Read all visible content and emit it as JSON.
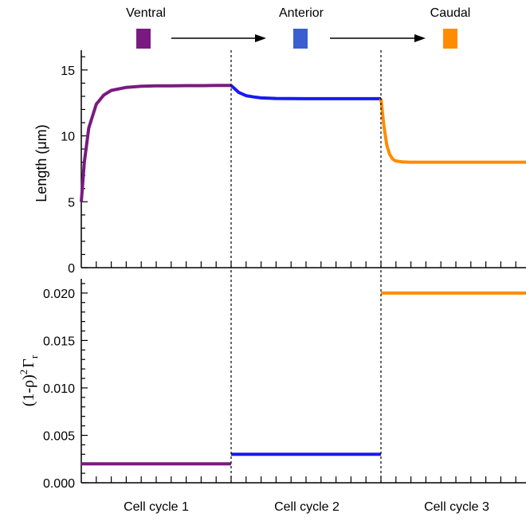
{
  "chart_data": [
    {
      "type": "line",
      "title": "",
      "xlabel": "",
      "ylabel": "Length (μm)",
      "ylim": [
        0,
        16.5
      ],
      "yticks": [
        0,
        5,
        10,
        15
      ],
      "ytick_labels": [
        "0",
        "5",
        "10",
        "15"
      ],
      "grid": false,
      "legend": "top",
      "stages": [
        {
          "name": "Ventral",
          "color": "#7a1a80"
        },
        {
          "name": "Anterior",
          "color": "#3a5fd0"
        },
        {
          "name": "Caudal",
          "color": "#ff8c00"
        }
      ],
      "series": [
        {
          "stage": "Ventral",
          "color": "#7a1a80",
          "x": [
            0.0,
            0.02,
            0.05,
            0.1,
            0.15,
            0.2,
            0.3,
            0.4,
            0.5,
            0.6,
            0.7,
            0.8,
            0.9,
            1.0
          ],
          "y": [
            5.0,
            8.0,
            10.6,
            12.4,
            13.1,
            13.45,
            13.68,
            13.76,
            13.79,
            13.8,
            13.81,
            13.81,
            13.82,
            13.82
          ]
        },
        {
          "stage": "Anterior",
          "color": "#1a1aee",
          "x": [
            1.0,
            1.05,
            1.1,
            1.15,
            1.2,
            1.3,
            1.4,
            1.5,
            1.6,
            1.7,
            1.8,
            1.9,
            2.0
          ],
          "y": [
            13.82,
            13.3,
            13.05,
            12.95,
            12.88,
            12.84,
            12.83,
            12.82,
            12.82,
            12.82,
            12.82,
            12.82,
            12.82
          ]
        },
        {
          "stage": "Caudal",
          "color": "#ff8c00",
          "x": [
            2.0,
            2.02,
            2.04,
            2.06,
            2.08,
            2.1,
            2.15,
            2.2,
            2.3,
            2.5,
            2.7,
            2.9,
            3.0
          ],
          "y": [
            12.82,
            10.8,
            9.3,
            8.6,
            8.25,
            8.1,
            8.02,
            8.0,
            8.0,
            8.0,
            8.0,
            8.0,
            8.0
          ]
        }
      ]
    },
    {
      "type": "line",
      "title": "",
      "xlabel": "",
      "ylabel": "(1-ρ)²Γr",
      "ylabel_parts": {
        "base": "(1-ρ)",
        "sup": "2",
        "mid": "Γ",
        "sub": "r"
      },
      "ylim": [
        0,
        0.0215
      ],
      "yticks": [
        0.0,
        0.005,
        0.01,
        0.015,
        0.02
      ],
      "ytick_labels": [
        "0.000",
        "0.005",
        "0.010",
        "0.015",
        "0.020"
      ],
      "grid": false,
      "categories": [
        "Cell cycle 1",
        "Cell cycle 2",
        "Cell cycle 3"
      ],
      "series": [
        {
          "stage": "Ventral",
          "color": "#7a1a80",
          "x": [
            0,
            1
          ],
          "y": [
            0.002,
            0.002
          ]
        },
        {
          "stage": "Anterior",
          "color": "#1a1aee",
          "x": [
            1,
            2
          ],
          "y": [
            0.003,
            0.003
          ]
        },
        {
          "stage": "Caudal",
          "color": "#ff8c00",
          "x": [
            2,
            3
          ],
          "y": [
            0.02,
            0.02
          ]
        }
      ]
    }
  ]
}
